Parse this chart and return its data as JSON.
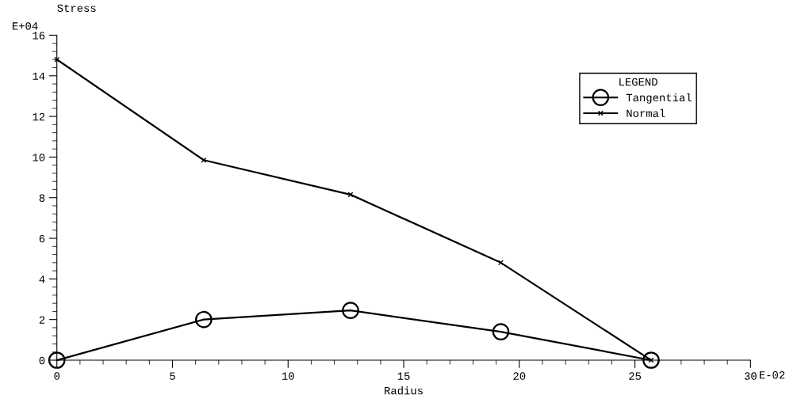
{
  "chart_data": {
    "type": "line",
    "xlabel": "Radius",
    "ylabel": "Stress",
    "legend_title": "LEGEND",
    "x": [
      0,
      6.35,
      12.7,
      19.2,
      25.7
    ],
    "series": [
      {
        "name": "Tangential",
        "color": "#000000",
        "marker": "circle",
        "values": [
          0,
          2.0,
          2.45,
          1.4,
          0
        ]
      },
      {
        "name": "Normal",
        "color": "#000000",
        "marker": "cross",
        "values": [
          14.8,
          9.85,
          8.15,
          4.8,
          0
        ]
      }
    ],
    "xlim": [
      0,
      30
    ],
    "xticks": [
      0,
      5,
      10,
      15,
      20,
      25,
      30
    ],
    "ylim": [
      0,
      16
    ],
    "yticks": [
      0,
      2,
      4,
      6,
      8,
      10,
      12,
      14,
      16
    ],
    "annotations": [
      "E+04",
      "E-02"
    ],
    "legend": "top right",
    "grid": false
  }
}
